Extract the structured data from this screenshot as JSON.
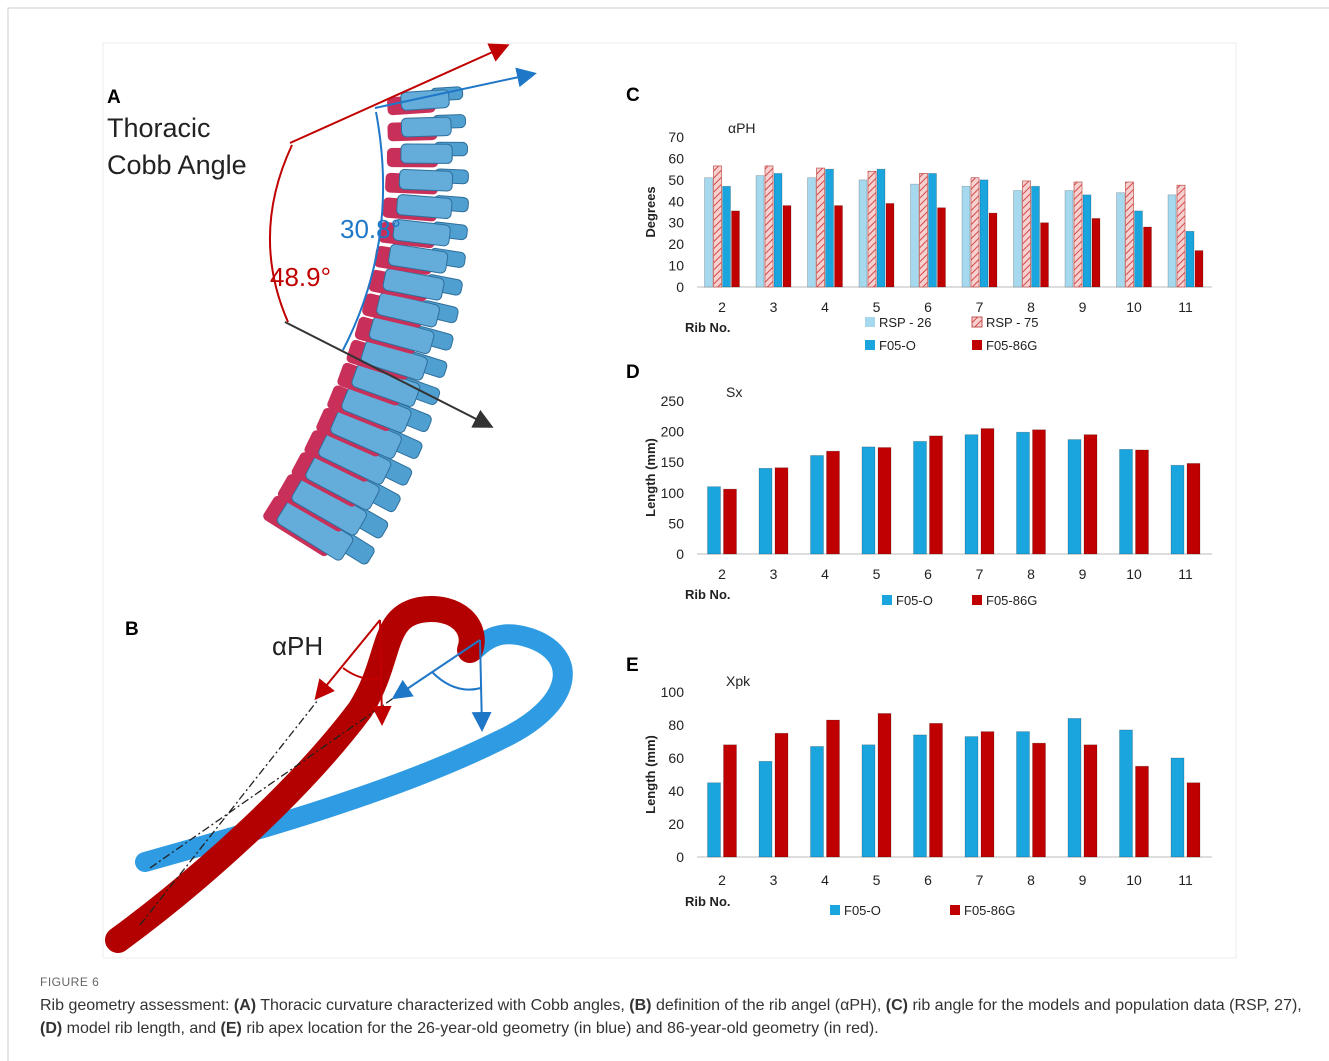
{
  "figure": {
    "label": "FIGURE 6",
    "caption": [
      {
        "text": "Rib geometry assessment: ",
        "bold": false
      },
      {
        "text": "(A)",
        "bold": true
      },
      {
        "text": " Thoracic curvature characterized with Cobb angles, ",
        "bold": false
      },
      {
        "text": "(B)",
        "bold": true
      },
      {
        "text": " definition of the rib angel (αPH), ",
        "bold": false
      },
      {
        "text": "(C)",
        "bold": true
      },
      {
        "text": " rib angle for the models and population data (RSP, 27), ",
        "bold": false
      },
      {
        "text": "(D)",
        "bold": true
      },
      {
        "text": " model rib length, and ",
        "bold": false
      },
      {
        "text": "(E)",
        "bold": true
      },
      {
        "text": " rib apex location for the 26-year-old geometry (in blue) and 86-year-old geometry (in red).",
        "bold": false
      }
    ]
  },
  "panel_a": {
    "label": "A",
    "title": [
      "Thoracic",
      "Cobb Angle"
    ],
    "angle_blue": "30.8°",
    "angle_red": "48.9°"
  },
  "panel_b": {
    "label": "B",
    "title": "αPH"
  },
  "chart_data": [
    {
      "type": "bar",
      "panel_label": "C",
      "title": "αPH",
      "y_label": "Degrees",
      "x_label": "Rib No.",
      "categories": [
        "2",
        "3",
        "4",
        "5",
        "6",
        "7",
        "8",
        "9",
        "10",
        "11"
      ],
      "series": [
        {
          "name": "RSP - 26",
          "color": "#a6d8ee",
          "values": [
            51,
            52,
            51,
            50,
            48,
            47,
            45,
            45,
            44,
            43
          ]
        },
        {
          "name": "RSP - 75",
          "color": "#c0504d",
          "hatch": true,
          "values": [
            56.5,
            56.5,
            55.5,
            54,
            53,
            51,
            49.5,
            49,
            49,
            47.5
          ]
        },
        {
          "name": "F05-O",
          "color": "#1aa5df",
          "values": [
            47,
            53,
            55,
            55,
            53,
            50,
            47,
            43,
            35.5,
            26
          ]
        },
        {
          "name": "F05-86G",
          "color": "#c00000",
          "values": [
            35.5,
            38,
            38,
            39,
            37,
            34.5,
            30,
            32,
            28,
            17
          ]
        }
      ],
      "ylim": [
        0,
        70
      ],
      "yticks": [
        0,
        10,
        20,
        30,
        40,
        50,
        60,
        70
      ]
    },
    {
      "type": "bar",
      "panel_label": "D",
      "title": "Sx",
      "y_label": "Length (mm)",
      "x_label": "Rib No.",
      "categories": [
        "2",
        "3",
        "4",
        "5",
        "6",
        "7",
        "8",
        "9",
        "10",
        "11"
      ],
      "series": [
        {
          "name": "F05-O",
          "color": "#1aa5df",
          "values": [
            110,
            140,
            161,
            175,
            184,
            195,
            199,
            187,
            171,
            145
          ]
        },
        {
          "name": "F05-86G",
          "color": "#c00000",
          "values": [
            106,
            141,
            168,
            174,
            193,
            205,
            203,
            195,
            170,
            148
          ]
        }
      ],
      "ylim": [
        0,
        250
      ],
      "yticks": [
        0,
        50,
        100,
        150,
        200,
        250
      ]
    },
    {
      "type": "bar",
      "panel_label": "E",
      "title": "Xpk",
      "y_label": "Length (mm)",
      "x_label": "Rib No.",
      "categories": [
        "2",
        "3",
        "4",
        "5",
        "6",
        "7",
        "8",
        "9",
        "10",
        "11"
      ],
      "series": [
        {
          "name": "F05-O",
          "color": "#1aa5df",
          "values": [
            45,
            58,
            67,
            68,
            74,
            73,
            76,
            84,
            77,
            60
          ]
        },
        {
          "name": "F05-86G",
          "color": "#c00000",
          "values": [
            68,
            75,
            83,
            87,
            81,
            76,
            69,
            68,
            55,
            45
          ]
        }
      ],
      "ylim": [
        0,
        100
      ],
      "yticks": [
        0,
        20,
        40,
        60,
        80,
        100
      ]
    }
  ]
}
